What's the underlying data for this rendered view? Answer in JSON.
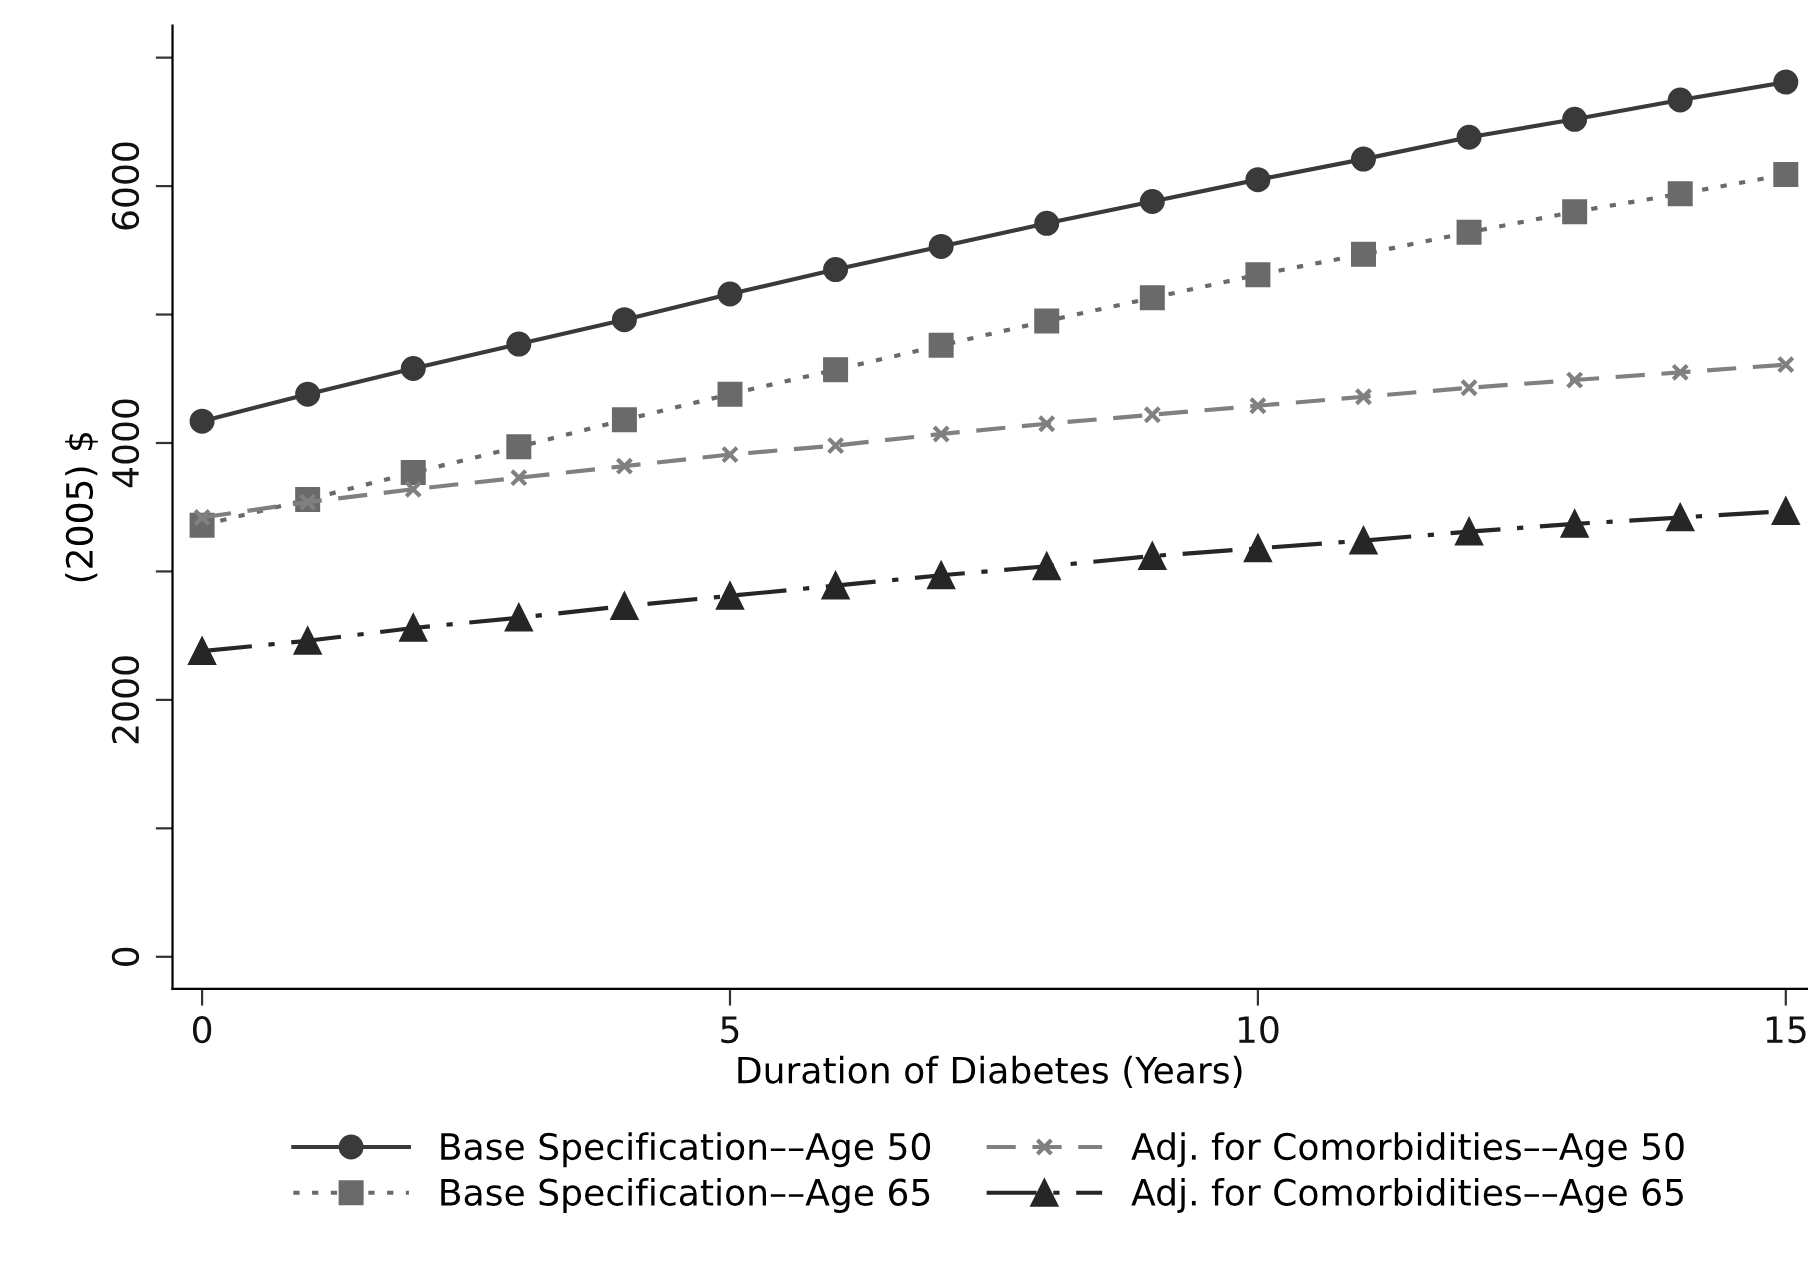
{
  "chart_data": {
    "type": "line",
    "xlabel": "Duration of Diabetes (Years)",
    "ylabel": "(2005) $",
    "x": [
      0,
      1,
      2,
      3,
      4,
      5,
      6,
      7,
      8,
      9,
      10,
      11,
      12,
      13,
      14,
      15
    ],
    "series": [
      {
        "name": "Base Specification––Age 50",
        "color": "#3a3a3a",
        "marker": "circle",
        "line_style": "solid",
        "values": [
          4170,
          4380,
          4580,
          4770,
          4960,
          5160,
          5350,
          5530,
          5710,
          5880,
          6050,
          6210,
          6380,
          6520,
          6670,
          6810
        ]
      },
      {
        "name": "Base Specification––Age 65",
        "color": "#6a6a6a",
        "marker": "square",
        "line_style": "dotted",
        "values": [
          3360,
          3560,
          3770,
          3970,
          4180,
          4380,
          4570,
          4760,
          4950,
          5130,
          5310,
          5470,
          5640,
          5800,
          5940,
          6090
        ]
      },
      {
        "name": "Adj. for Comorbidities––Age 50",
        "color": "#808080",
        "marker": "cross",
        "line_style": "dashed",
        "values": [
          3420,
          3540,
          3640,
          3730,
          3820,
          3910,
          3980,
          4070,
          4150,
          4220,
          4290,
          4360,
          4430,
          4490,
          4550,
          4610
        ]
      },
      {
        "name": "Adj. for Comorbidities––Age 65",
        "color": "#262626",
        "marker": "triangle",
        "line_style": "dashdot",
        "values": [
          2380,
          2460,
          2560,
          2640,
          2730,
          2810,
          2890,
          2970,
          3040,
          3120,
          3180,
          3240,
          3310,
          3370,
          3420,
          3470
        ]
      }
    ],
    "xlim": [
      -0.28,
      15.2
    ],
    "xticks": [
      0,
      5,
      10,
      15
    ],
    "ylim": [
      -250,
      7250
    ],
    "yticks": [
      0,
      {
        "value": 1000,
        "label": null
      },
      2000,
      {
        "value": 3000,
        "label": null
      },
      4000,
      {
        "value": 5000,
        "label": null
      },
      6000,
      {
        "value": 7000,
        "label": null
      }
    ],
    "grid": false,
    "legend": "bottom"
  }
}
